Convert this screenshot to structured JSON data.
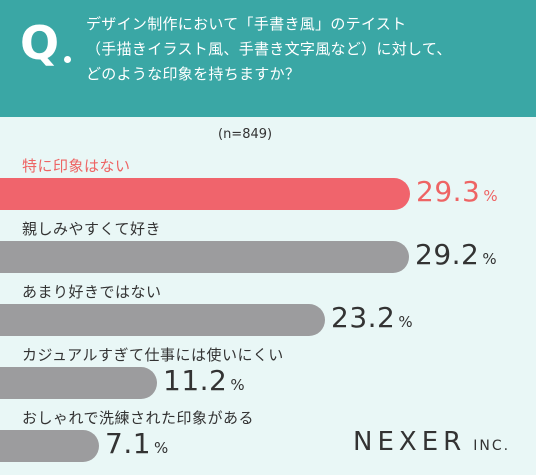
{
  "header": {
    "q_mark": "Q",
    "question_lines": [
      "デザイン制作において「手書き風」のテイスト",
      "（手描きイラスト風、手書き文字風など）に対して、",
      "どのような印象を持ちますか？"
    ]
  },
  "sample_label": "(n=849)",
  "brand": {
    "main": "NEXER",
    "sub": "INC."
  },
  "colors": {
    "header_bg": "#3aa7a5",
    "highlight": "#f0646c",
    "bar_gray": "#9c9c9e",
    "background": "#e9f7f6"
  },
  "chart_data": {
    "type": "bar",
    "orientation": "horizontal",
    "categories": [
      "特に印象はない",
      "親しみやすくて好き",
      "あまり好きではない",
      "カジュアルすぎて仕事には使いにくい",
      "おしゃれで洗練された印象がある"
    ],
    "values": [
      29.3,
      29.2,
      23.2,
      11.2,
      7.1
    ],
    "value_labels": [
      "29.3",
      "29.2",
      "23.2",
      "11.2",
      "7.1"
    ],
    "unit": "%",
    "highlight_index": 0
  }
}
